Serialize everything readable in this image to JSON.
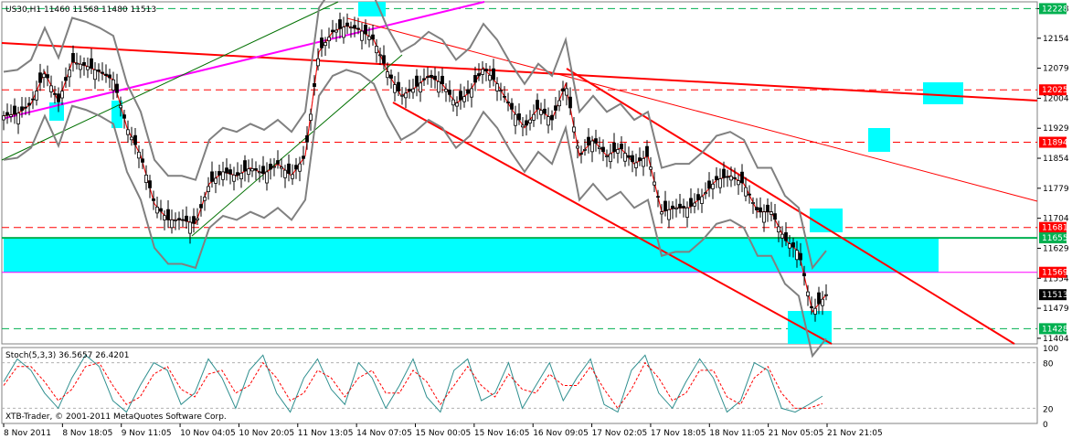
{
  "chart_data": [
    {
      "type": "candlestick",
      "symbol_header": "US30,H1  11460 11568 11480 11513",
      "price_axis": {
        "ylim": [
          11390,
          12245
        ],
        "ticks": [
          "12228",
          "12154",
          "12079",
          "12004",
          "11929",
          "11854",
          "11779",
          "11704",
          "11629",
          "11554",
          "11479",
          "11404"
        ]
      },
      "x_axis": {
        "tick_labels": [
          "8 Nov 2011",
          "8 Nov 18:05",
          "9 Nov 11:05",
          "10 Nov 04:05",
          "10 Nov 20:05",
          "11 Nov 13:05",
          "14 Nov 07:05",
          "15 Nov 00:05",
          "15 Nov 16:05",
          "16 Nov 09:05",
          "17 Nov 02:05",
          "17 Nov 18:05",
          "18 Nov 11:05",
          "21 Nov 05:05",
          "21 Nov 21:05"
        ]
      },
      "price_markers": [
        {
          "label": "12228",
          "value": 12228,
          "bg": "#00b050"
        },
        {
          "label": "12025",
          "value": 12025,
          "bg": "#ff0000"
        },
        {
          "label": "11894",
          "value": 11894,
          "bg": "#ff0000"
        },
        {
          "label": "11681",
          "value": 11681,
          "bg": "#ff0000"
        },
        {
          "label": "11655",
          "value": 11655,
          "bg": "#00b050"
        },
        {
          "label": "11569",
          "value": 11569,
          "bg": "#ff0000"
        },
        {
          "label": "11513",
          "value": 11513,
          "bg": "#000000"
        },
        {
          "label": "11428",
          "value": 11428,
          "bg": "#00b050"
        }
      ],
      "close_path": [
        [
          0,
          11960
        ],
        [
          15,
          11965
        ],
        [
          30,
          11990
        ],
        [
          45,
          12070
        ],
        [
          60,
          11995
        ],
        [
          75,
          12095
        ],
        [
          90,
          12085
        ],
        [
          105,
          12070
        ],
        [
          120,
          12050
        ],
        [
          135,
          11930
        ],
        [
          150,
          11860
        ],
        [
          165,
          11740
        ],
        [
          180,
          11700
        ],
        [
          195,
          11700
        ],
        [
          210,
          11690
        ],
        [
          225,
          11790
        ],
        [
          240,
          11820
        ],
        [
          255,
          11810
        ],
        [
          270,
          11830
        ],
        [
          285,
          11815
        ],
        [
          300,
          11840
        ],
        [
          315,
          11810
        ],
        [
          330,
          11860
        ],
        [
          345,
          12120
        ],
        [
          360,
          12170
        ],
        [
          375,
          12185
        ],
        [
          390,
          12175
        ],
        [
          405,
          12150
        ],
        [
          420,
          12070
        ],
        [
          435,
          12010
        ],
        [
          450,
          12030
        ],
        [
          465,
          12060
        ],
        [
          480,
          12040
        ],
        [
          495,
          11990
        ],
        [
          510,
          12020
        ],
        [
          525,
          12080
        ],
        [
          540,
          12040
        ],
        [
          555,
          11980
        ],
        [
          570,
          11930
        ],
        [
          585,
          11980
        ],
        [
          600,
          11950
        ],
        [
          615,
          12040
        ],
        [
          630,
          11860
        ],
        [
          645,
          11900
        ],
        [
          660,
          11860
        ],
        [
          675,
          11880
        ],
        [
          690,
          11840
        ],
        [
          705,
          11860
        ],
        [
          720,
          11720
        ],
        [
          735,
          11730
        ],
        [
          750,
          11730
        ],
        [
          765,
          11760
        ],
        [
          780,
          11800
        ],
        [
          795,
          11810
        ],
        [
          810,
          11790
        ],
        [
          825,
          11720
        ],
        [
          840,
          11720
        ],
        [
          855,
          11650
        ],
        [
          870,
          11620
        ],
        [
          885,
          11470
        ],
        [
          900,
          11513
        ]
      ],
      "resistance_levels": [
        12228,
        12025,
        11894,
        11681,
        11428
      ],
      "support_zone": [
        11569,
        11655
      ]
    },
    {
      "type": "line",
      "indicator_label": "Stoch(5,3,3) 36.5657 26.4201",
      "ylim": [
        0,
        100
      ],
      "ticks": [
        "100",
        "80",
        "20",
        "0"
      ],
      "series": [
        {
          "name": "",
          "color": "#2f8f8f",
          "values": [
            55,
            85,
            70,
            40,
            20,
            60,
            90,
            75,
            30,
            15,
            50,
            80,
            70,
            25,
            40,
            85,
            60,
            20,
            70,
            90,
            40,
            15,
            60,
            85,
            45,
            25,
            80,
            60,
            20,
            50,
            85,
            35,
            15,
            70,
            85,
            30,
            40,
            80,
            20,
            50,
            80,
            30,
            60,
            85,
            25,
            15,
            70,
            90,
            40,
            20,
            55,
            85,
            60,
            15,
            30,
            80,
            70,
            20,
            15,
            25,
            36
          ]
        },
        {
          "name": "",
          "color": "#ff0000",
          "dashed": true,
          "values": [
            50,
            75,
            75,
            55,
            30,
            45,
            75,
            80,
            50,
            25,
            35,
            65,
            75,
            45,
            35,
            65,
            70,
            40,
            50,
            80,
            60,
            30,
            40,
            70,
            60,
            35,
            60,
            70,
            40,
            40,
            70,
            55,
            25,
            50,
            75,
            50,
            35,
            65,
            45,
            40,
            65,
            50,
            50,
            75,
            45,
            20,
            45,
            80,
            60,
            30,
            40,
            70,
            70,
            35,
            25,
            60,
            75,
            40,
            20,
            20,
            26
          ]
        }
      ]
    }
  ],
  "footer": {
    "copyright": "XTB-Trader, © 2001-2011 MetaQuotes Software Corp."
  },
  "colors": {
    "support": "#00b050",
    "resistance": "#ff0000",
    "cyan_zone": "#00ffff",
    "magenta": "#ff00ff",
    "bands": "#808080"
  }
}
